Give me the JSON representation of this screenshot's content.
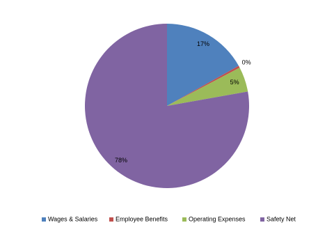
{
  "chart_data": {
    "type": "pie",
    "categories": [
      "Wages & Salaries",
      "Employee Benefits",
      "Operating Expenses",
      "Safety Net"
    ],
    "values": [
      16.9,
      0.4,
      4.9,
      77.8
    ],
    "value_labels": [
      "17%",
      "0%",
      "5%",
      "78%"
    ],
    "colors": [
      "#4f81bd",
      "#c0504d",
      "#9bbb59",
      "#8064a2"
    ],
    "legend": "bottom"
  }
}
